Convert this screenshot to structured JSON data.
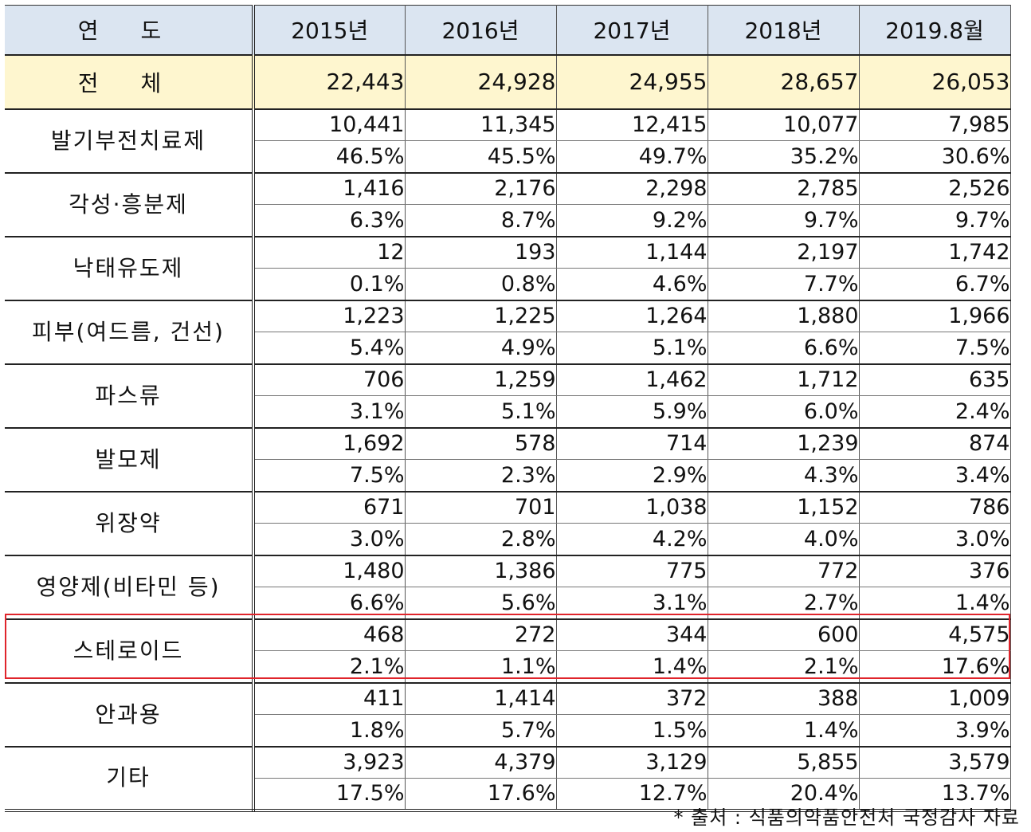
{
  "header": {
    "label": "연 도",
    "years": [
      "2015년",
      "2016년",
      "2017년",
      "2018년",
      "2019.8월"
    ]
  },
  "total": {
    "label": "전 체",
    "values": [
      "22,443",
      "24,928",
      "24,955",
      "28,657",
      "26,053"
    ]
  },
  "categories": [
    {
      "label": "발기부전치료제",
      "counts": [
        "10,441",
        "11,345",
        "12,415",
        "10,077",
        "7,985"
      ],
      "pcts": [
        "46.5%",
        "45.5%",
        "49.7%",
        "35.2%",
        "30.6%"
      ]
    },
    {
      "label": "각성·흥분제",
      "counts": [
        "1,416",
        "2,176",
        "2,298",
        "2,785",
        "2,526"
      ],
      "pcts": [
        "6.3%",
        "8.7%",
        "9.2%",
        "9.7%",
        "9.7%"
      ]
    },
    {
      "label": "낙태유도제",
      "counts": [
        "12",
        "193",
        "1,144",
        "2,197",
        "1,742"
      ],
      "pcts": [
        "0.1%",
        "0.8%",
        "4.6%",
        "7.7%",
        "6.7%"
      ]
    },
    {
      "label": "피부(여드름, 건선)",
      "counts": [
        "1,223",
        "1,225",
        "1,264",
        "1,880",
        "1,966"
      ],
      "pcts": [
        "5.4%",
        "4.9%",
        "5.1%",
        "6.6%",
        "7.5%"
      ]
    },
    {
      "label": "파스류",
      "counts": [
        "706",
        "1,259",
        "1,462",
        "1,712",
        "635"
      ],
      "pcts": [
        "3.1%",
        "5.1%",
        "5.9%",
        "6.0%",
        "2.4%"
      ]
    },
    {
      "label": "발모제",
      "counts": [
        "1,692",
        "578",
        "714",
        "1,239",
        "874"
      ],
      "pcts": [
        "7.5%",
        "2.3%",
        "2.9%",
        "4.3%",
        "3.4%"
      ]
    },
    {
      "label": "위장약",
      "counts": [
        "671",
        "701",
        "1,038",
        "1,152",
        "786"
      ],
      "pcts": [
        "3.0%",
        "2.8%",
        "4.2%",
        "4.0%",
        "3.0%"
      ]
    },
    {
      "label": "영양제(비타민 등)",
      "counts": [
        "1,480",
        "1,386",
        "775",
        "772",
        "376"
      ],
      "pcts": [
        "6.6%",
        "5.6%",
        "3.1%",
        "2.7%",
        "1.4%"
      ]
    },
    {
      "label": "스테로이드",
      "counts": [
        "468",
        "272",
        "344",
        "600",
        "4,575"
      ],
      "pcts": [
        "2.1%",
        "1.1%",
        "1.4%",
        "2.1%",
        "17.6%"
      ]
    },
    {
      "label": "안과용",
      "counts": [
        "411",
        "1,414",
        "372",
        "388",
        "1,009"
      ],
      "pcts": [
        "1.8%",
        "5.7%",
        "1.5%",
        "1.4%",
        "3.9%"
      ]
    },
    {
      "label": "기타",
      "counts": [
        "3,923",
        "4,379",
        "3,129",
        "5,855",
        "3,579"
      ],
      "pcts": [
        "17.5%",
        "17.6%",
        "12.7%",
        "20.4%",
        "13.7%"
      ]
    }
  ],
  "highlight_color": "#e0242b",
  "header_bg": "#dbe5f1",
  "total_bg": "#fef6cf",
  "source": "* 출처 : 식품의약품안전처 국정감사 자료"
}
